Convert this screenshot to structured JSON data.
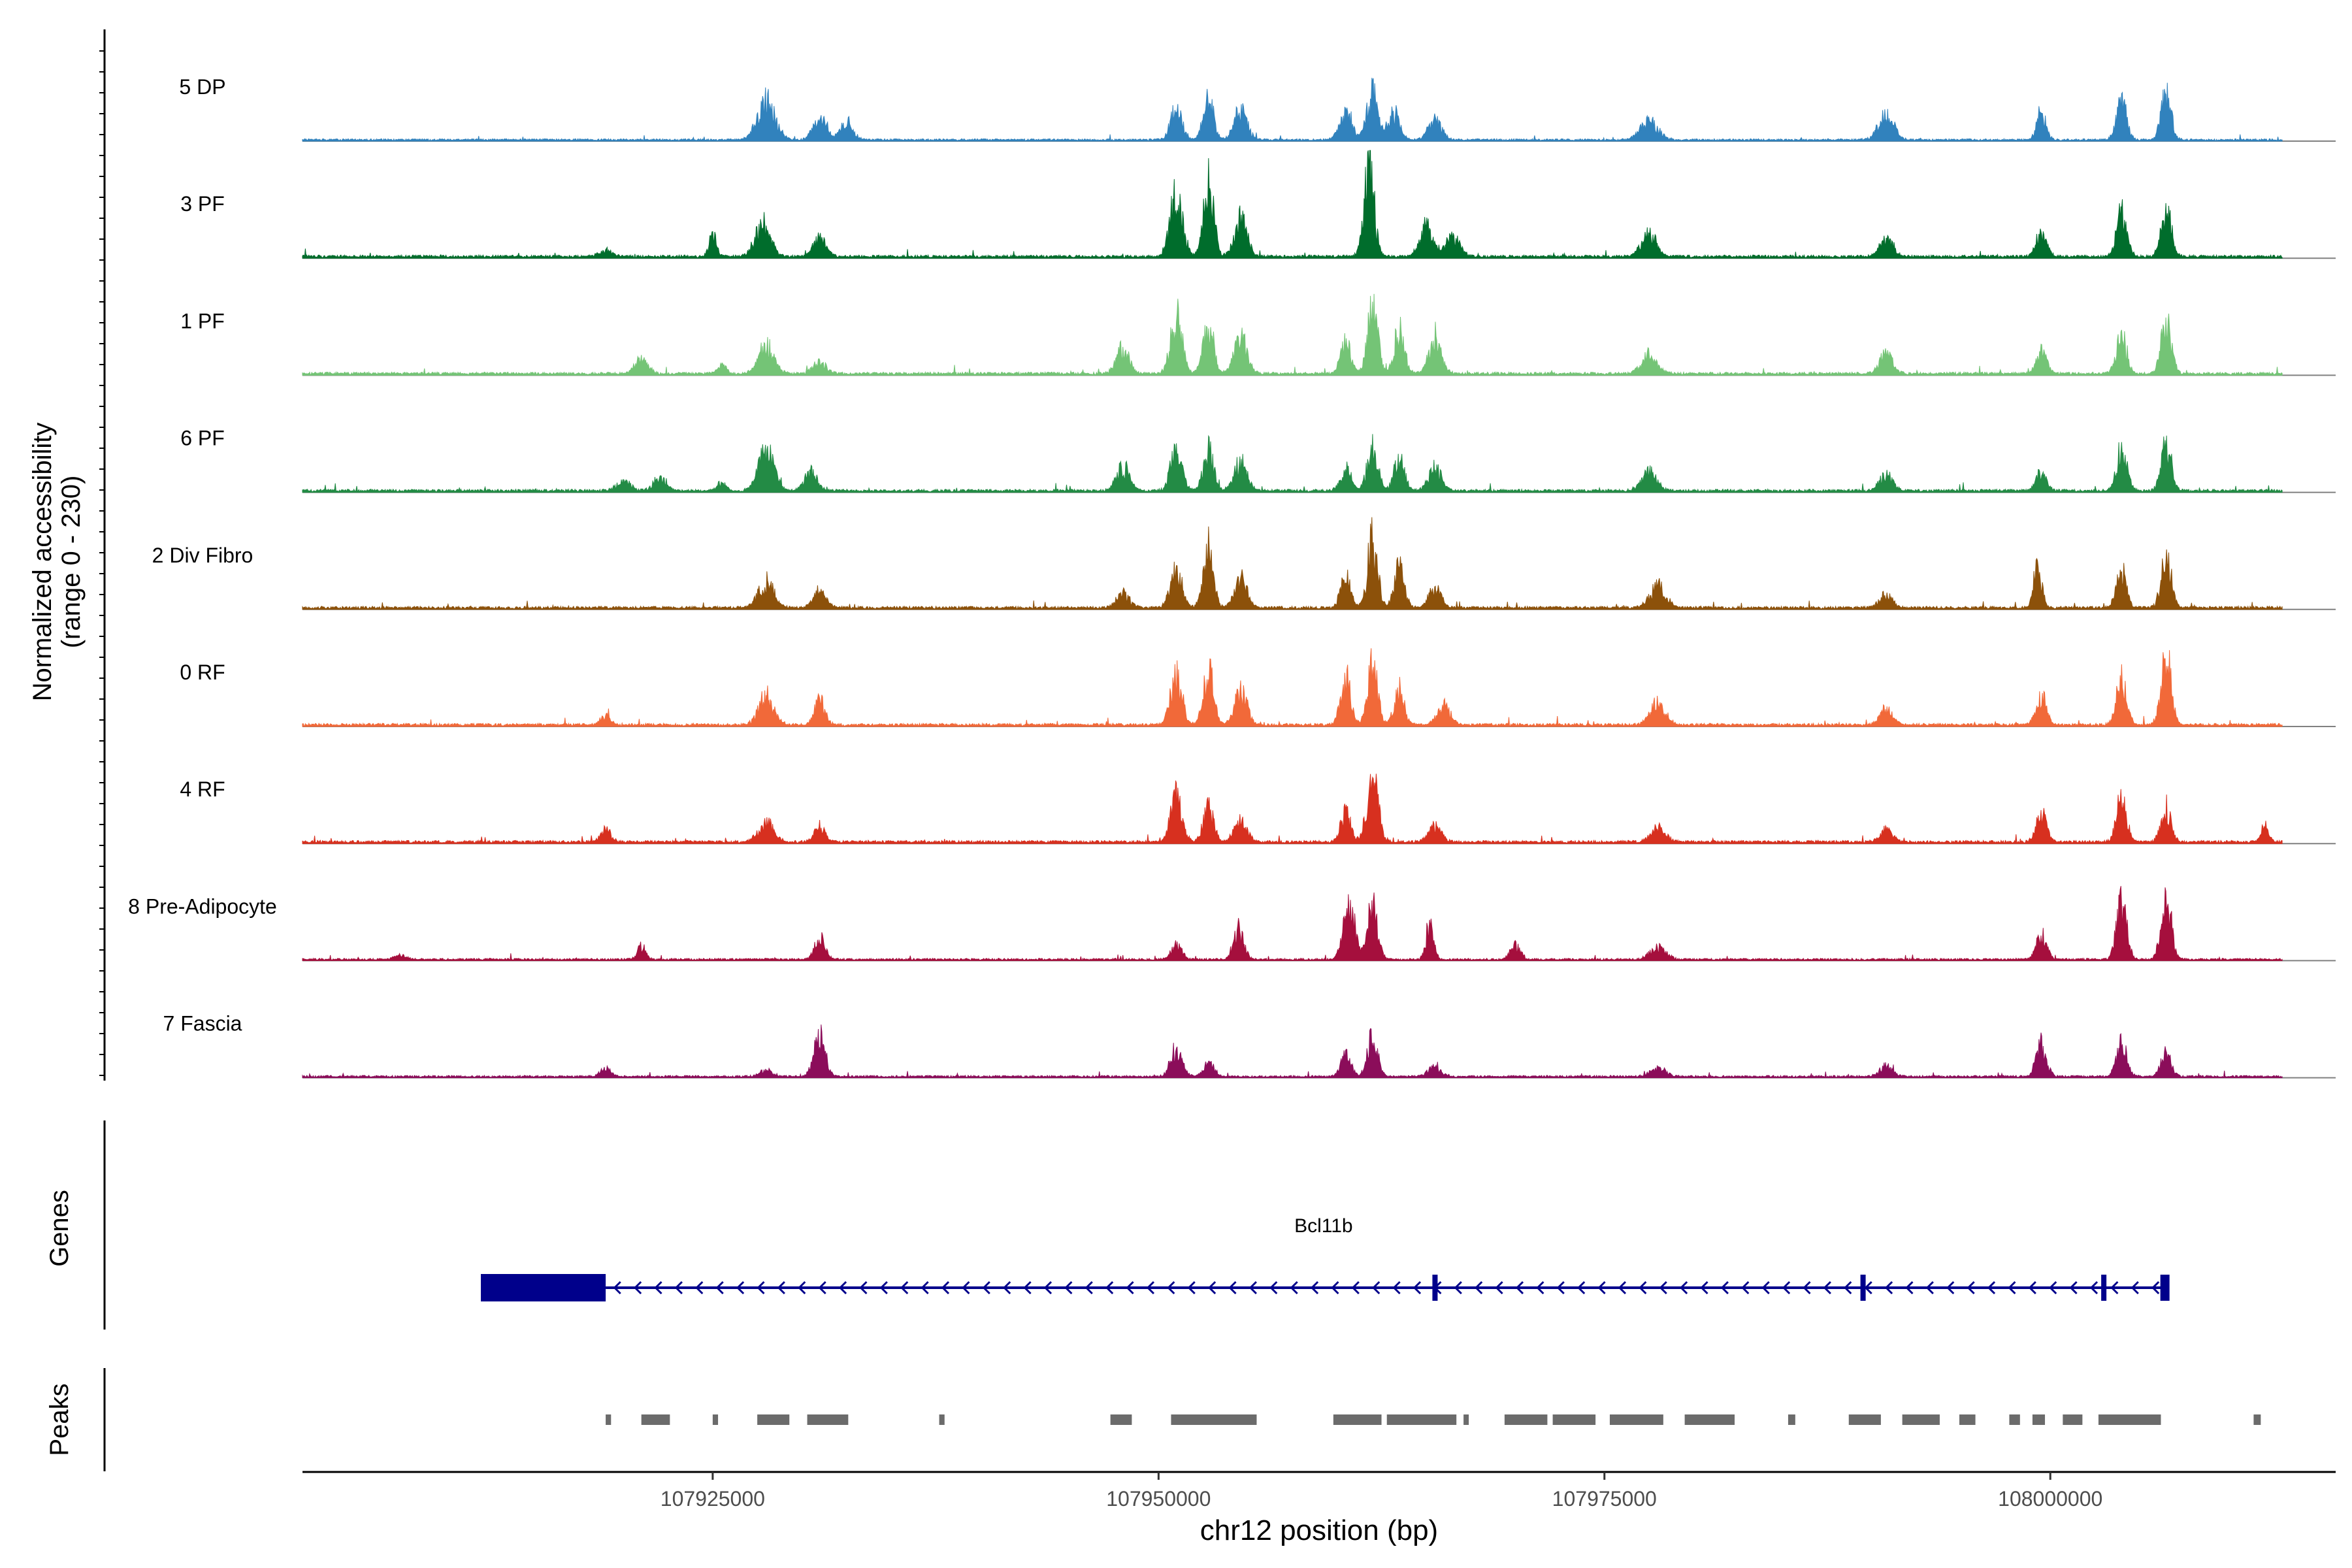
{
  "chart_data": {
    "type": "area",
    "title": "",
    "ylabel_line1": "Normalized accessibility",
    "ylabel_line2": "(range 0 - 230)",
    "y_range": [
      0,
      230
    ],
    "xlabel": "chr12 position (bp)",
    "xlim": [
      107902000,
      108016000
    ],
    "x_ticks": [
      {
        "value": 107925000,
        "label": "107925000"
      },
      {
        "value": 107950000,
        "label": "107950000"
      },
      {
        "value": 107975000,
        "label": "107975000"
      },
      {
        "value": 108000000,
        "label": "108000000"
      }
    ],
    "track_extent": [
      107902000,
      108013000
    ],
    "series": [
      {
        "name": "5 DP",
        "color": "#3182bd",
        "baseline": 3,
        "peaks": [
          [
            107928000,
            95,
            700
          ],
          [
            107931000,
            55,
            500
          ],
          [
            107932500,
            45,
            500
          ],
          [
            107951000,
            80,
            450
          ],
          [
            107952800,
            105,
            400
          ],
          [
            107954600,
            75,
            500
          ],
          [
            107960500,
            60,
            500
          ],
          [
            107962000,
            110,
            450
          ],
          [
            107963200,
            70,
            450
          ],
          [
            107965500,
            50,
            500
          ],
          [
            107977500,
            45,
            700
          ],
          [
            107990800,
            60,
            600
          ],
          [
            107999500,
            70,
            350
          ],
          [
            108004000,
            95,
            400
          ],
          [
            108006500,
            110,
            400
          ]
        ]
      },
      {
        "name": "3 PF",
        "color": "#006d2c",
        "baseline": 4,
        "peaks": [
          [
            107919000,
            15,
            500
          ],
          [
            107925000,
            55,
            300
          ],
          [
            107927800,
            80,
            600
          ],
          [
            107931000,
            45,
            500
          ],
          [
            107951000,
            150,
            500
          ],
          [
            107952800,
            185,
            400
          ],
          [
            107954600,
            90,
            500
          ],
          [
            107961800,
            220,
            400
          ],
          [
            107965000,
            70,
            500
          ],
          [
            107966500,
            45,
            600
          ],
          [
            107977500,
            55,
            600
          ],
          [
            107990800,
            45,
            500
          ],
          [
            107999500,
            60,
            400
          ],
          [
            108004000,
            110,
            400
          ],
          [
            108006500,
            120,
            400
          ]
        ]
      },
      {
        "name": "1 PF",
        "color": "#74c476",
        "baseline": 4,
        "peaks": [
          [
            107921000,
            35,
            500
          ],
          [
            107925500,
            25,
            300
          ],
          [
            107928000,
            70,
            600
          ],
          [
            107931000,
            30,
            500
          ],
          [
            107948000,
            65,
            500
          ],
          [
            107951000,
            140,
            450
          ],
          [
            107952800,
            135,
            400
          ],
          [
            107954600,
            90,
            500
          ],
          [
            107960500,
            80,
            400
          ],
          [
            107962000,
            160,
            400
          ],
          [
            107963500,
            110,
            400
          ],
          [
            107965500,
            80,
            500
          ],
          [
            107977500,
            45,
            600
          ],
          [
            107990800,
            50,
            500
          ],
          [
            107999500,
            55,
            400
          ],
          [
            108004000,
            95,
            400
          ],
          [
            108006500,
            135,
            400
          ]
        ]
      },
      {
        "name": "6 PF",
        "color": "#238b45",
        "baseline": 4,
        "peaks": [
          [
            107920000,
            25,
            500
          ],
          [
            107922000,
            30,
            500
          ],
          [
            107925500,
            25,
            300
          ],
          [
            107928000,
            105,
            600
          ],
          [
            107930500,
            45,
            500
          ],
          [
            107948000,
            60,
            500
          ],
          [
            107951000,
            100,
            450
          ],
          [
            107952800,
            100,
            400
          ],
          [
            107954600,
            70,
            500
          ],
          [
            107960500,
            60,
            400
          ],
          [
            107962000,
            110,
            400
          ],
          [
            107963500,
            80,
            400
          ],
          [
            107965500,
            60,
            500
          ],
          [
            107977500,
            45,
            600
          ],
          [
            107990800,
            40,
            500
          ],
          [
            107999500,
            45,
            400
          ],
          [
            108004000,
            105,
            400
          ],
          [
            108006500,
            110,
            400
          ]
        ]
      },
      {
        "name": "2 Div Fibro",
        "color": "#8c510a",
        "baseline": 4,
        "peaks": [
          [
            107928000,
            65,
            600
          ],
          [
            107931000,
            40,
            500
          ],
          [
            107948000,
            35,
            500
          ],
          [
            107951000,
            100,
            450
          ],
          [
            107952800,
            145,
            400
          ],
          [
            107954600,
            70,
            500
          ],
          [
            107960500,
            80,
            400
          ],
          [
            107962000,
            165,
            400
          ],
          [
            107963500,
            100,
            400
          ],
          [
            107965500,
            45,
            500
          ],
          [
            107978000,
            55,
            600
          ],
          [
            107990800,
            35,
            500
          ],
          [
            107999300,
            115,
            300
          ],
          [
            108004000,
            85,
            400
          ],
          [
            108006500,
            125,
            400
          ]
        ]
      },
      {
        "name": "0 RF",
        "color": "#f16939",
        "baseline": 4,
        "peaks": [
          [
            107919000,
            20,
            400
          ],
          [
            107928000,
            70,
            600
          ],
          [
            107931000,
            60,
            400
          ],
          [
            107951000,
            125,
            450
          ],
          [
            107952800,
            130,
            400
          ],
          [
            107954600,
            80,
            500
          ],
          [
            107960500,
            115,
            400
          ],
          [
            107962000,
            145,
            400
          ],
          [
            107963500,
            85,
            400
          ],
          [
            107966000,
            50,
            500
          ],
          [
            107978000,
            55,
            600
          ],
          [
            107990800,
            40,
            500
          ],
          [
            107999500,
            70,
            400
          ],
          [
            108004000,
            115,
            400
          ],
          [
            108006500,
            165,
            400
          ]
        ]
      },
      {
        "name": "4 RF",
        "color": "#d7301f",
        "baseline": 4,
        "peaks": [
          [
            107919000,
            30,
            400
          ],
          [
            107928000,
            45,
            600
          ],
          [
            107931000,
            40,
            400
          ],
          [
            107951000,
            110,
            450
          ],
          [
            107952800,
            85,
            400
          ],
          [
            107954600,
            50,
            500
          ],
          [
            107962000,
            160,
            450
          ],
          [
            107960500,
            70,
            400
          ],
          [
            107965500,
            40,
            500
          ],
          [
            107978000,
            35,
            600
          ],
          [
            107990800,
            30,
            500
          ],
          [
            107999500,
            70,
            400
          ],
          [
            108004000,
            110,
            400
          ],
          [
            108006500,
            80,
            400
          ],
          [
            108012000,
            40,
            300
          ]
        ]
      },
      {
        "name": "8 Pre-Adipocyte",
        "color": "#a50f3d",
        "baseline": 3,
        "peaks": [
          [
            107907500,
            12,
            400
          ],
          [
            107921000,
            35,
            300
          ],
          [
            107931000,
            55,
            400
          ],
          [
            107951000,
            35,
            400
          ],
          [
            107954500,
            70,
            400
          ],
          [
            107960500,
            55,
            400
          ],
          [
            107962000,
            130,
            400
          ],
          [
            107960800,
            100,
            400
          ],
          [
            107965200,
            85,
            300
          ],
          [
            107970000,
            35,
            400
          ],
          [
            107978000,
            30,
            600
          ],
          [
            107999500,
            60,
            400
          ],
          [
            108004000,
            140,
            400
          ],
          [
            108006500,
            160,
            400
          ]
        ]
      },
      {
        "name": "7 Fascia",
        "color": "#8b0d5a",
        "baseline": 3,
        "peaks": [
          [
            107919000,
            20,
            400
          ],
          [
            107928000,
            15,
            500
          ],
          [
            107931000,
            100,
            450
          ],
          [
            107951000,
            70,
            450
          ],
          [
            107952800,
            35,
            400
          ],
          [
            107960500,
            50,
            400
          ],
          [
            107962000,
            95,
            400
          ],
          [
            107965500,
            25,
            500
          ],
          [
            107978000,
            20,
            600
          ],
          [
            107990800,
            25,
            500
          ],
          [
            107999500,
            80,
            400
          ],
          [
            108004000,
            80,
            400
          ],
          [
            108006500,
            55,
            400
          ]
        ]
      }
    ],
    "genes": {
      "label": "Genes",
      "gene_name": "Bcl11b",
      "color": "#00008b",
      "strand": "-",
      "start": 107912000,
      "end": 108006500,
      "thick_exon": [
        107912000,
        107919000
      ],
      "small_exons": [
        107965500,
        107989500,
        108003000
      ]
    },
    "peaks_track": {
      "label": "Peaks",
      "color": "#6b6b6b",
      "regions": [
        [
          107919000,
          107919300
        ],
        [
          107921000,
          107922600
        ],
        [
          107925000,
          107925300
        ],
        [
          107927500,
          107929300
        ],
        [
          107930300,
          107932600
        ],
        [
          107937700,
          107938000
        ],
        [
          107947300,
          107948500
        ],
        [
          107950700,
          107955500
        ],
        [
          107959800,
          107962500
        ],
        [
          107962800,
          107966700
        ],
        [
          107967100,
          107967300
        ],
        [
          107969400,
          107971800
        ],
        [
          107972100,
          107974500
        ],
        [
          107975300,
          107978300
        ],
        [
          107979500,
          107982300
        ],
        [
          107985300,
          107985700
        ],
        [
          107988700,
          107990500
        ],
        [
          107991700,
          107993800
        ],
        [
          107994900,
          107995800
        ],
        [
          107997700,
          107998300
        ],
        [
          107999000,
          107999700
        ],
        [
          108000700,
          108001800
        ],
        [
          108002700,
          108006200
        ],
        [
          108011400,
          108011800
        ]
      ]
    }
  }
}
